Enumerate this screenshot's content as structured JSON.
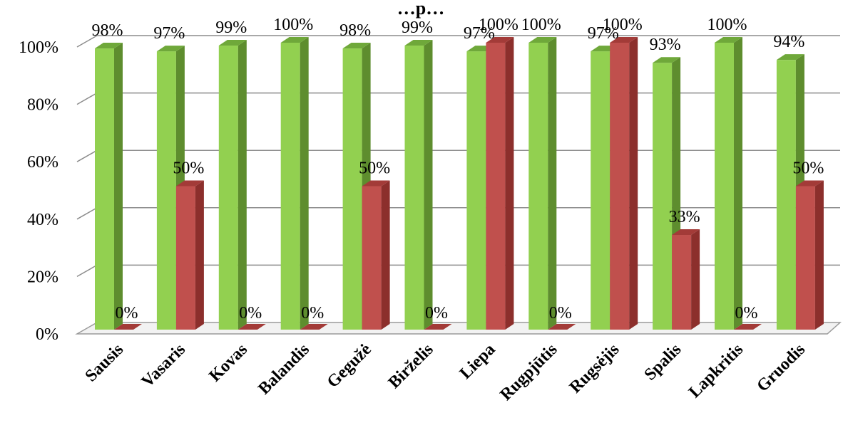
{
  "chart_data": {
    "type": "bar",
    "title": "…p…",
    "xlabel": "",
    "ylabel": "",
    "ylim": [
      0,
      100
    ],
    "y_ticks": [
      "0%",
      "20%",
      "40%",
      "60%",
      "80%",
      "100%"
    ],
    "grid": true,
    "three_d": true,
    "categories": [
      "Sausis",
      "Vasaris",
      "Kovas",
      "Balandis",
      "Gegužė",
      "Birželis",
      "Liepa",
      "Rugpjūtis",
      "Rugsėjis",
      "Spalis",
      "Lapkritis",
      "Gruodis"
    ],
    "series": [
      {
        "color": "#92d050",
        "side_color": "#5e8d2e",
        "top_color": "#6fa83a",
        "values": [
          98,
          97,
          99,
          100,
          98,
          99,
          97,
          100,
          97,
          93,
          100,
          94
        ],
        "labels": [
          "98%",
          "97%",
          "99%",
          "100%",
          "98%",
          "99%",
          "97%",
          "100%",
          "97%",
          "93%",
          "100%",
          "94%"
        ]
      },
      {
        "color": "#c0504d",
        "side_color": "#8c2f2c",
        "top_color": "#a33b38",
        "values": [
          0,
          50,
          0,
          0,
          50,
          0,
          100,
          0,
          100,
          33,
          0,
          50
        ],
        "labels": [
          "0%",
          "50%",
          "0%",
          "0%",
          "50%",
          "0%",
          "100%",
          "0%",
          "100%",
          "33%",
          "0%",
          "50%"
        ]
      }
    ]
  }
}
